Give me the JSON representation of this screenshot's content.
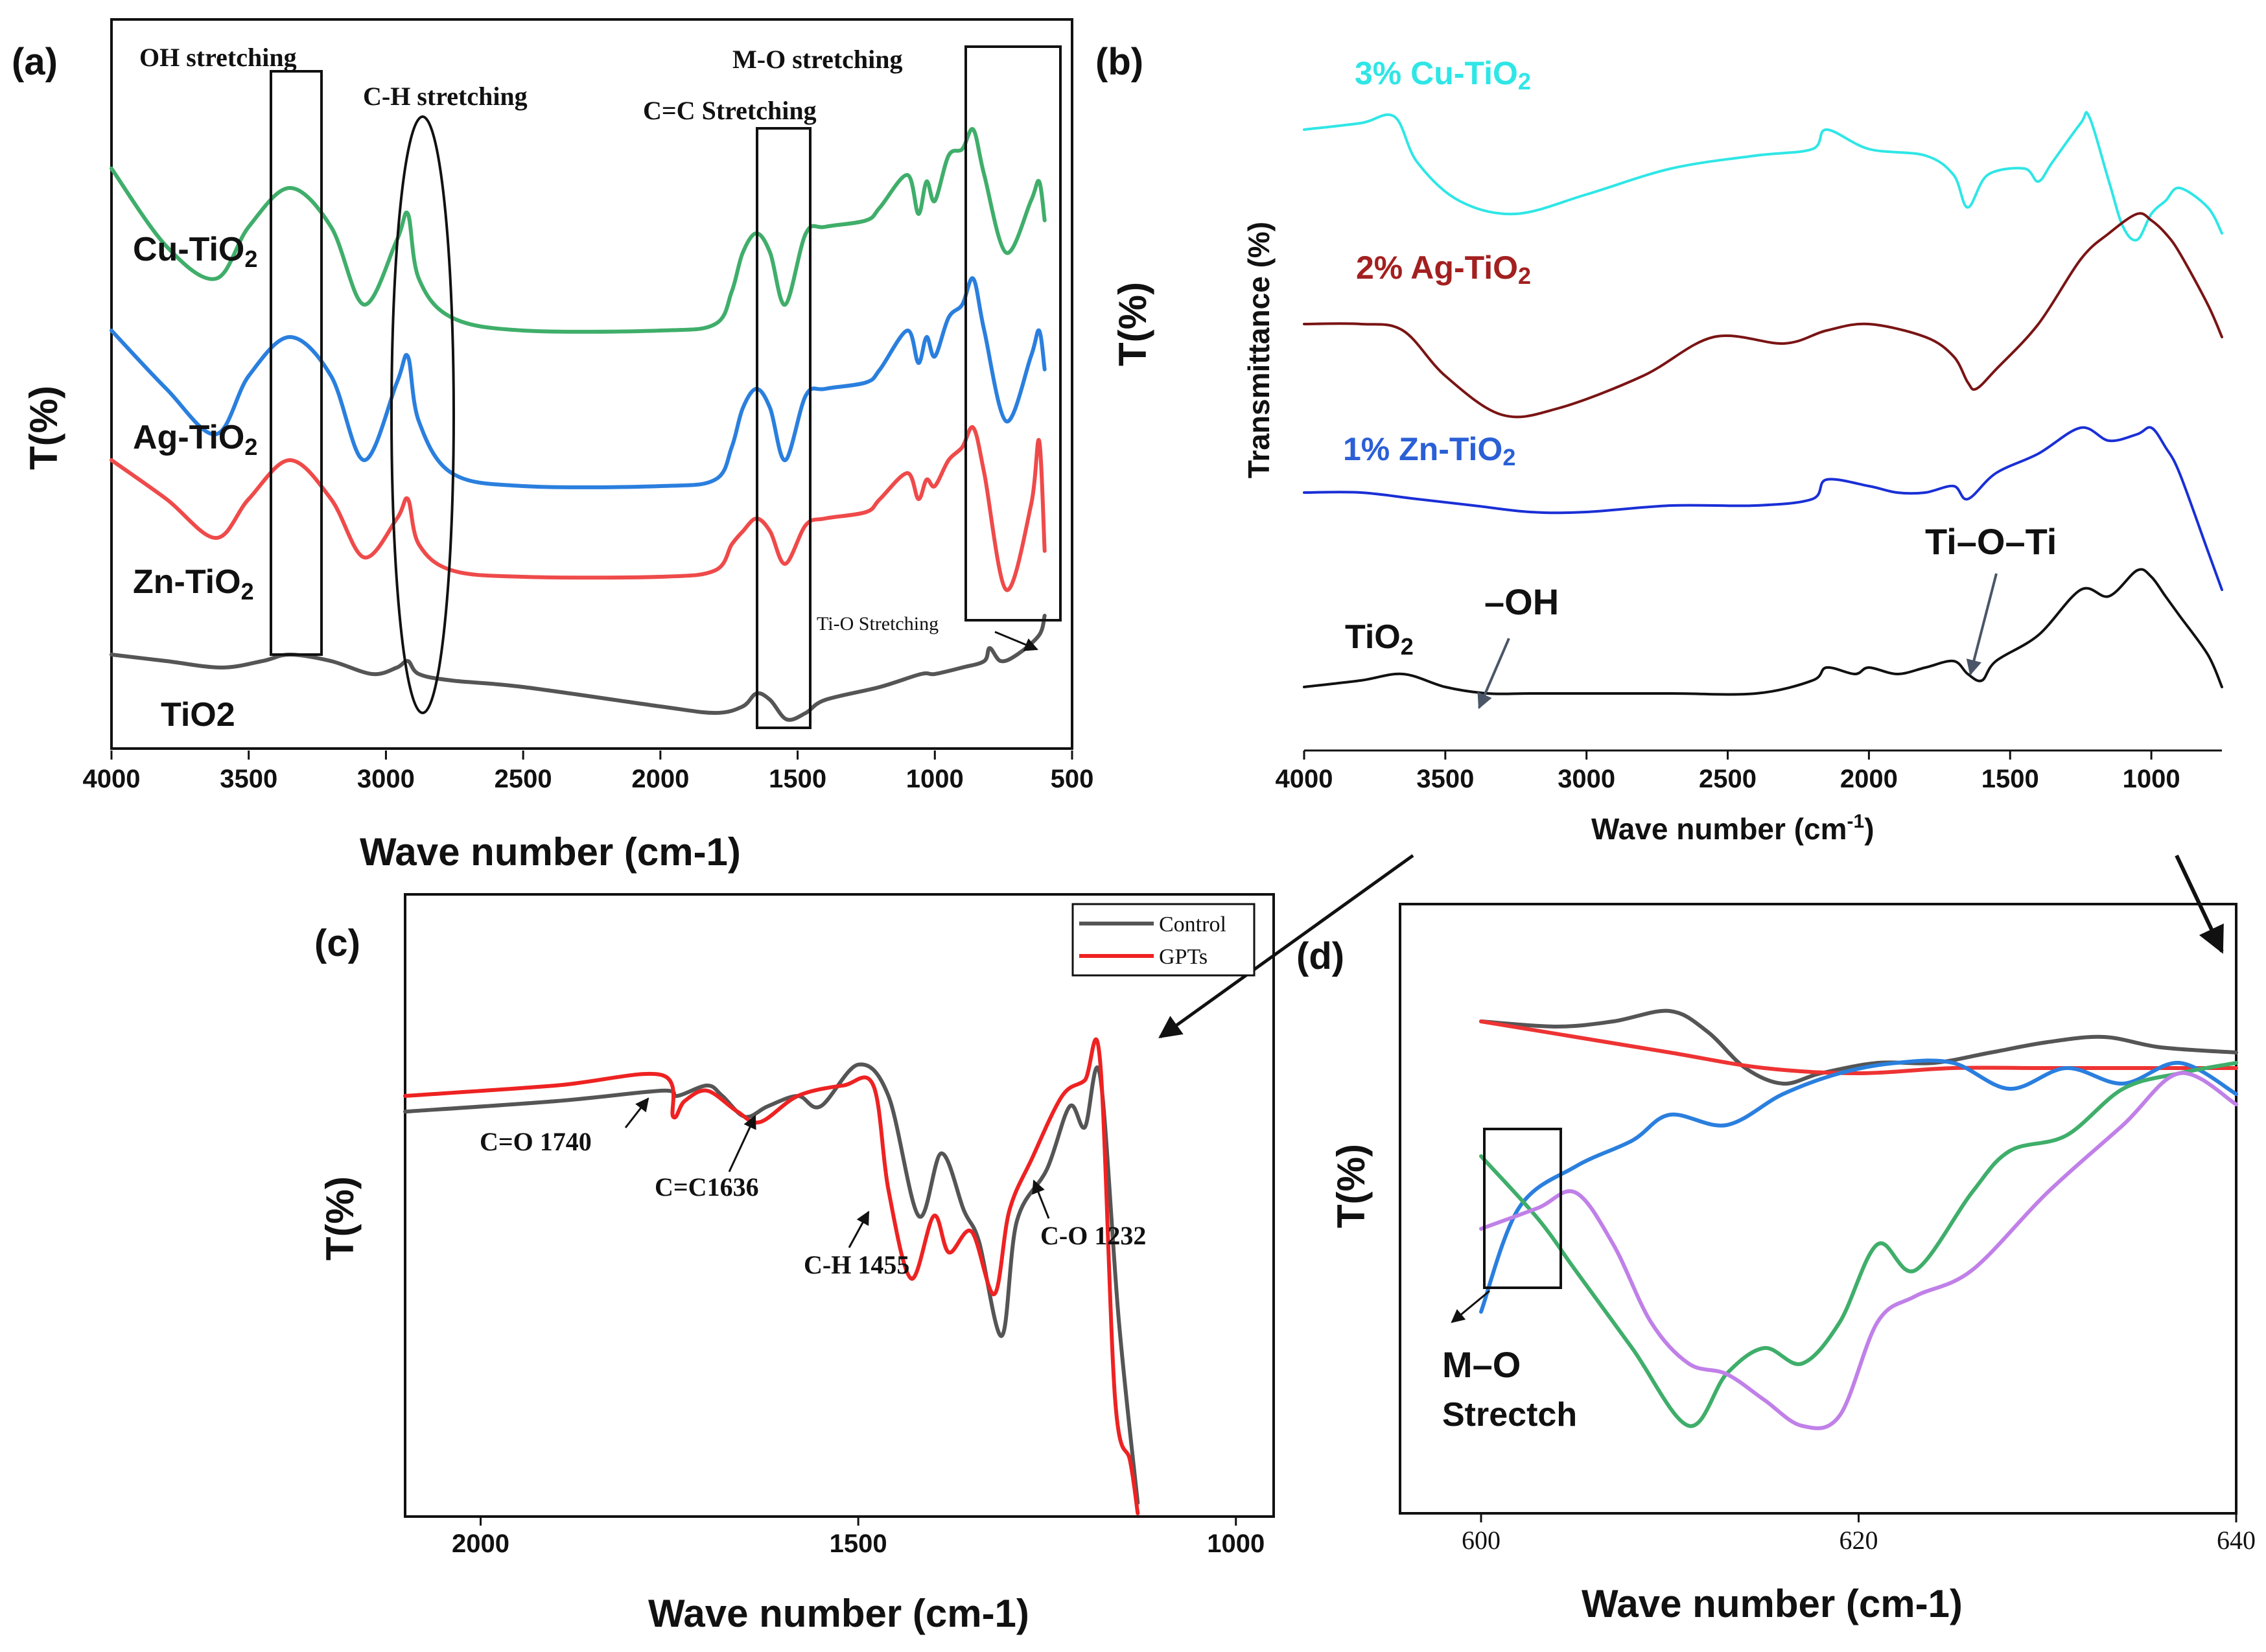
{
  "panels": {
    "a": {
      "letter": "(a)",
      "xlabel": "Wave number (cm-1)",
      "ylabel": "T(%)",
      "xticks": [
        "4000",
        "3500",
        "3000",
        "2500",
        "2000",
        "1500",
        "1000",
        "500"
      ],
      "annotations": {
        "oh": "OH stretching",
        "ch": "C-H stretching",
        "cc": "C=C Stretching",
        "mo": "M-O stretching",
        "tio": "Ti-O Stretching"
      },
      "series_labels": {
        "cu": "Cu-TiO",
        "ag": "Ag-TiO",
        "zn": "Zn-TiO",
        "ti": "TiO2",
        "sub": "2"
      },
      "colors": {
        "cu": "#3fae6a",
        "ag": "#2a7fde",
        "zn": "#ef4a4a",
        "ti": "#555555"
      }
    },
    "b": {
      "letter": "(b)",
      "xlabel_main": "Wave number (cm",
      "xlabel_sup": "-1",
      "xlabel_end": ")",
      "ylabel_outer": "T(%)",
      "ylabel_inner": "Transmittance (%)",
      "xticks": [
        "4000",
        "3500",
        "3000",
        "2500",
        "2000",
        "1500",
        "1000"
      ],
      "series_labels": {
        "cu": "3% Cu-TiO",
        "ag": "2% Ag-TiO",
        "zn": "1% Zn-TiO",
        "ti": "TiO",
        "sub": "2"
      },
      "annotations": {
        "oh": "–OH",
        "tioti": "Ti–O–Ti"
      },
      "colors": {
        "cu": "#2fe6e6",
        "ag": "#7a1414",
        "zn": "#1a2fd6",
        "ti": "#111111"
      }
    },
    "c": {
      "letter": "(c)",
      "xlabel": "Wave number (cm-1)",
      "ylabel": "T(%)",
      "xticks": [
        "2000",
        "1500",
        "1000"
      ],
      "legend": {
        "control": "Control",
        "gpts": "GPTs"
      },
      "annotations": {
        "co1740": "C=O 1740",
        "cc1636": "C=C1636",
        "ch1455": "C-H 1455",
        "co1232": "C-O 1232"
      },
      "colors": {
        "control": "#555555",
        "gpts": "#ee2222"
      }
    },
    "d": {
      "letter": "(d)",
      "xlabel": "Wave number (cm-1)",
      "ylabel": "T(%)",
      "xticks": [
        "600",
        "620",
        "640"
      ],
      "annotation_line1": "M–O",
      "annotation_line2": "Strectch",
      "colors": {
        "gray": "#555555",
        "red": "#ee3333",
        "blue": "#2a7fde",
        "green": "#3fae6a",
        "purple": "#c080e8"
      }
    }
  },
  "chart_data": [
    {
      "panel": "a",
      "type": "line",
      "xlabel": "Wave number (cm-1)",
      "ylabel": "T(%)",
      "xlim": [
        4000,
        500
      ],
      "x_reversed": true,
      "y_ticks_shown": false,
      "series": [
        {
          "name": "Cu-TiO2",
          "x": [
            4000,
            3800,
            3620,
            3500,
            3350,
            3200,
            3080,
            2960,
            2920,
            2880,
            2760,
            2500,
            2000,
            1800,
            1740,
            1700,
            1650,
            1600,
            1545,
            1470,
            1400,
            1250,
            1200,
            1100,
            1060,
            1030,
            1000,
            950,
            900,
            860,
            820,
            740,
            650,
            620,
            600
          ],
          "y": [
            0.87,
            0.75,
            0.7,
            0.78,
            0.84,
            0.78,
            0.66,
            0.76,
            0.8,
            0.7,
            0.64,
            0.62,
            0.62,
            0.63,
            0.68,
            0.74,
            0.77,
            0.74,
            0.66,
            0.77,
            0.78,
            0.79,
            0.81,
            0.86,
            0.8,
            0.85,
            0.82,
            0.89,
            0.9,
            0.93,
            0.86,
            0.74,
            0.82,
            0.85,
            0.79
          ]
        },
        {
          "name": "Ag-TiO2",
          "x": [
            4000,
            3800,
            3620,
            3500,
            3350,
            3200,
            3080,
            2960,
            2920,
            2880,
            2760,
            2500,
            2000,
            1800,
            1740,
            1700,
            1650,
            1600,
            1545,
            1470,
            1400,
            1250,
            1200,
            1100,
            1060,
            1030,
            1000,
            950,
            900,
            860,
            820,
            740,
            650,
            620,
            600
          ],
          "y": [
            0.62,
            0.53,
            0.46,
            0.55,
            0.61,
            0.55,
            0.42,
            0.54,
            0.58,
            0.48,
            0.4,
            0.38,
            0.38,
            0.39,
            0.44,
            0.5,
            0.53,
            0.5,
            0.42,
            0.52,
            0.53,
            0.54,
            0.56,
            0.62,
            0.57,
            0.61,
            0.58,
            0.64,
            0.66,
            0.7,
            0.62,
            0.48,
            0.58,
            0.62,
            0.56
          ]
        },
        {
          "name": "Zn-TiO2",
          "x": [
            4000,
            3800,
            3620,
            3500,
            3350,
            3200,
            3080,
            2960,
            2920,
            2880,
            2760,
            2500,
            2000,
            1800,
            1740,
            1700,
            1650,
            1600,
            1545,
            1470,
            1400,
            1250,
            1200,
            1100,
            1060,
            1030,
            1000,
            950,
            900,
            860,
            820,
            740,
            650,
            620,
            600
          ],
          "y": [
            0.42,
            0.36,
            0.3,
            0.36,
            0.42,
            0.36,
            0.27,
            0.33,
            0.36,
            0.29,
            0.25,
            0.24,
            0.24,
            0.25,
            0.29,
            0.31,
            0.33,
            0.31,
            0.26,
            0.32,
            0.33,
            0.34,
            0.36,
            0.4,
            0.36,
            0.39,
            0.38,
            0.42,
            0.44,
            0.47,
            0.4,
            0.22,
            0.35,
            0.45,
            0.28
          ]
        },
        {
          "name": "TiO2",
          "x": [
            4000,
            3800,
            3600,
            3450,
            3350,
            3200,
            3050,
            2960,
            2920,
            2880,
            2760,
            2500,
            2000,
            1800,
            1700,
            1650,
            1600,
            1540,
            1470,
            1400,
            1200,
            1050,
            1000,
            900,
            820,
            800,
            760,
            700,
            620,
            600
          ],
          "y": [
            0.12,
            0.11,
            0.1,
            0.11,
            0.12,
            0.11,
            0.09,
            0.1,
            0.11,
            0.09,
            0.08,
            0.07,
            0.04,
            0.03,
            0.04,
            0.06,
            0.05,
            0.02,
            0.03,
            0.05,
            0.07,
            0.09,
            0.09,
            0.1,
            0.11,
            0.13,
            0.11,
            0.12,
            0.15,
            0.18
          ]
        }
      ]
    },
    {
      "panel": "b",
      "type": "line",
      "ylabel": "Transmittance (%)",
      "xlim": [
        4000,
        750
      ],
      "x_reversed": true,
      "y_ticks_shown": false,
      "series": [
        {
          "name": "3% Cu-TiO2",
          "x": [
            4000,
            3800,
            3680,
            3600,
            3450,
            3250,
            3000,
            2700,
            2400,
            2200,
            2150,
            2000,
            1800,
            1700,
            1650,
            1580,
            1450,
            1400,
            1350,
            1250,
            1220,
            1150,
            1100,
            1050,
            1000,
            950,
            900,
            800,
            750
          ],
          "y": [
            0.93,
            0.94,
            0.95,
            0.88,
            0.82,
            0.8,
            0.83,
            0.87,
            0.89,
            0.9,
            0.93,
            0.9,
            0.89,
            0.86,
            0.81,
            0.86,
            0.87,
            0.85,
            0.88,
            0.94,
            0.95,
            0.85,
            0.78,
            0.76,
            0.8,
            0.82,
            0.84,
            0.81,
            0.77
          ]
        },
        {
          "name": "2% Ag-TiO2",
          "x": [
            4000,
            3800,
            3650,
            3500,
            3300,
            3100,
            2800,
            2550,
            2300,
            2150,
            2000,
            1800,
            1700,
            1650,
            1620,
            1550,
            1400,
            1250,
            1150,
            1050,
            1000,
            950,
            900,
            800,
            750
          ],
          "y": [
            0.63,
            0.63,
            0.62,
            0.55,
            0.49,
            0.5,
            0.55,
            0.61,
            0.6,
            0.62,
            0.63,
            0.61,
            0.58,
            0.54,
            0.53,
            0.56,
            0.63,
            0.73,
            0.77,
            0.8,
            0.79,
            0.77,
            0.74,
            0.66,
            0.61
          ]
        },
        {
          "name": "1% Zn-TiO2",
          "x": [
            4000,
            3800,
            3600,
            3400,
            3200,
            3000,
            2700,
            2400,
            2200,
            2150,
            2000,
            1900,
            1800,
            1700,
            1650,
            1550,
            1400,
            1250,
            1150,
            1050,
            1000,
            950,
            900,
            800,
            750
          ],
          "y": [
            0.37,
            0.37,
            0.36,
            0.35,
            0.34,
            0.34,
            0.35,
            0.35,
            0.36,
            0.39,
            0.38,
            0.37,
            0.37,
            0.38,
            0.36,
            0.4,
            0.43,
            0.47,
            0.45,
            0.46,
            0.47,
            0.44,
            0.4,
            0.28,
            0.22
          ]
        },
        {
          "name": "TiO2",
          "x": [
            4000,
            3800,
            3650,
            3500,
            3350,
            3200,
            3000,
            2700,
            2400,
            2200,
            2150,
            2050,
            2000,
            1900,
            1800,
            1700,
            1650,
            1600,
            1550,
            1400,
            1250,
            1150,
            1050,
            1000,
            950,
            900,
            800,
            750
          ],
          "y": [
            0.07,
            0.08,
            0.09,
            0.07,
            0.06,
            0.06,
            0.06,
            0.06,
            0.06,
            0.08,
            0.1,
            0.09,
            0.1,
            0.09,
            0.1,
            0.11,
            0.09,
            0.08,
            0.11,
            0.15,
            0.22,
            0.21,
            0.25,
            0.24,
            0.21,
            0.18,
            0.12,
            0.07
          ]
        }
      ]
    },
    {
      "panel": "c",
      "type": "line",
      "xlabel": "Wave number (cm-1)",
      "ylabel": "T(%)",
      "xlim": [
        2100,
        950
      ],
      "x_reversed": true,
      "y_ticks_shown": false,
      "series": [
        {
          "name": "Control",
          "x": [
            2100,
            1900,
            1760,
            1740,
            1700,
            1680,
            1650,
            1620,
            1580,
            1550,
            1500,
            1460,
            1420,
            1390,
            1360,
            1340,
            1310,
            1290,
            1250,
            1220,
            1200,
            1180,
            1155,
            1130
          ],
          "y": [
            0.77,
            0.79,
            0.81,
            0.8,
            0.82,
            0.8,
            0.76,
            0.78,
            0.8,
            0.78,
            0.86,
            0.8,
            0.57,
            0.69,
            0.58,
            0.52,
            0.34,
            0.56,
            0.66,
            0.78,
            0.74,
            0.84,
            0.37,
            0.02
          ]
        },
        {
          "name": "GPTs",
          "x": [
            2100,
            1900,
            1760,
            1745,
            1730,
            1700,
            1660,
            1630,
            1580,
            1520,
            1480,
            1460,
            1430,
            1400,
            1380,
            1350,
            1320,
            1300,
            1270,
            1230,
            1200,
            1180,
            1160,
            1140,
            1130
          ],
          "y": [
            0.8,
            0.82,
            0.84,
            0.76,
            0.79,
            0.81,
            0.77,
            0.75,
            0.8,
            0.82,
            0.82,
            0.62,
            0.45,
            0.57,
            0.5,
            0.54,
            0.42,
            0.58,
            0.68,
            0.8,
            0.83,
            0.87,
            0.22,
            0.1,
            0.0
          ]
        }
      ]
    },
    {
      "panel": "d",
      "type": "line",
      "xlabel": "Wave number (cm-1)",
      "ylabel": "T(%)",
      "xlim": [
        600,
        640
      ],
      "y_ticks_shown": false,
      "series": [
        {
          "x": [
            600,
            604,
            607,
            610,
            612,
            614,
            616,
            618,
            621,
            624,
            627,
            630,
            633,
            636,
            640
          ],
          "y": [
            0.88,
            0.87,
            0.88,
            0.9,
            0.86,
            0.79,
            0.76,
            0.78,
            0.8,
            0.8,
            0.82,
            0.84,
            0.85,
            0.83,
            0.82
          ],
          "color": "gray"
        },
        {
          "x": [
            600,
            605,
            610,
            615,
            620,
            625,
            630,
            635,
            640
          ],
          "y": [
            0.88,
            0.85,
            0.82,
            0.79,
            0.78,
            0.79,
            0.79,
            0.79,
            0.79
          ],
          "color": "red"
        },
        {
          "x": [
            600,
            602,
            605,
            608,
            610,
            613,
            616,
            619,
            622,
            625,
            628,
            631,
            634,
            637,
            640
          ],
          "y": [
            0.32,
            0.52,
            0.6,
            0.65,
            0.7,
            0.68,
            0.74,
            0.78,
            0.8,
            0.8,
            0.75,
            0.79,
            0.76,
            0.8,
            0.74
          ],
          "color": "blue"
        },
        {
          "x": [
            600,
            603,
            605,
            608,
            611,
            613,
            615,
            617,
            619,
            621,
            623,
            626,
            628,
            631,
            634,
            637,
            640
          ],
          "y": [
            0.62,
            0.5,
            0.4,
            0.25,
            0.1,
            0.2,
            0.25,
            0.22,
            0.3,
            0.45,
            0.4,
            0.55,
            0.63,
            0.66,
            0.75,
            0.78,
            0.8
          ],
          "color": "green"
        },
        {
          "x": [
            600,
            603,
            605,
            607,
            609,
            611,
            613,
            615,
            617,
            619,
            621,
            623,
            626,
            630,
            634,
            637,
            640
          ],
          "y": [
            0.48,
            0.52,
            0.55,
            0.45,
            0.3,
            0.22,
            0.2,
            0.15,
            0.1,
            0.12,
            0.3,
            0.35,
            0.4,
            0.55,
            0.68,
            0.78,
            0.72
          ],
          "color": "purple"
        }
      ]
    }
  ]
}
